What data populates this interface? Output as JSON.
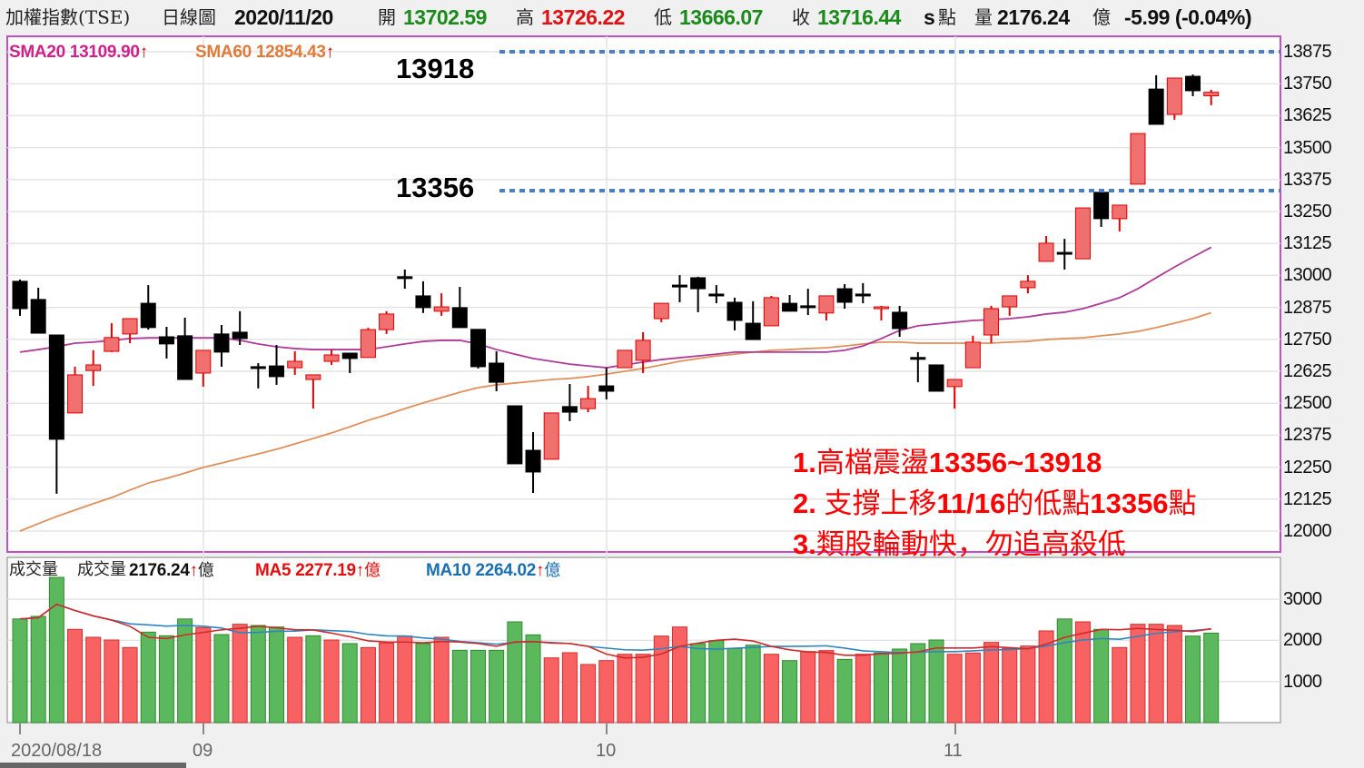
{
  "header": {
    "index_name": "加權指數(TSE)",
    "chart_type": "日線圖",
    "date": "2020/11/20",
    "open_label": "開",
    "open": "13702.59",
    "high_label": "高",
    "high": "13726.22",
    "low_label": "低",
    "low": "13666.07",
    "close_label": "收",
    "close": "13716.44",
    "s_mark": "s",
    "unit_points": "點",
    "volume_label": "量",
    "volume": "2176.24",
    "volume_unit": "億",
    "change": "-5.99 (-0.04%)"
  },
  "price_legend": {
    "sma20": "SMA20 13109.90",
    "sma60": "SMA60 12854.43",
    "arrow": "↑"
  },
  "volume_legend": {
    "title": "成交量",
    "label": "成交量",
    "value": "2176.24",
    "unit": "億",
    "ma5": "MA5 2277.19",
    "ma10": "MA10 2264.02",
    "arrow": "↑"
  },
  "levels": {
    "upper": "13918",
    "lower": "13356"
  },
  "notes": [
    {
      "num": "1.",
      "text": "高檔震盪",
      "tail": "13356~13918"
    },
    {
      "num": "2. ",
      "text": "支撐上移",
      "tail": "11/16",
      "text2": "的低點",
      "tail2": "13356",
      "text3": "點"
    },
    {
      "num": "3.",
      "text": "類股輪動快，勿追高殺低"
    }
  ],
  "x_labels": [
    "2020/08/18",
    "09",
    "10",
    "11"
  ],
  "colors": {
    "up_candle": "#f07070",
    "up_border": "#e00000",
    "down_candle": "#000000",
    "sma20": "#b03a98",
    "sma60": "#e0905a",
    "vol_up": "#f86262",
    "vol_down": "#5cb85c",
    "vol_ma5": "#d02a2a",
    "vol_ma10": "#2f85c0",
    "level_line": "#4a7fc1",
    "price_frame": "#c050c8"
  },
  "chart_data": {
    "type": "candlestick",
    "price_ylim": [
      12000,
      13875
    ],
    "price_ticks": [
      13875,
      13750,
      13625,
      13500,
      13375,
      13250,
      13125,
      13000,
      12875,
      12750,
      12625,
      12500,
      12375,
      12250,
      12125,
      12000
    ],
    "volume_ticks": [
      3000,
      2000,
      1000
    ],
    "grid": true,
    "ohlc": [
      [
        12977,
        12984,
        12842,
        12870
      ],
      [
        12906,
        12952,
        12774,
        12774
      ],
      [
        12767,
        12767,
        12146,
        12359
      ],
      [
        12462,
        12643,
        12462,
        12611
      ],
      [
        12628,
        12707,
        12568,
        12650
      ],
      [
        12703,
        12813,
        12700,
        12757
      ],
      [
        12771,
        12831,
        12735,
        12831
      ],
      [
        12891,
        12962,
        12788,
        12796
      ],
      [
        12760,
        12799,
        12675,
        12732
      ],
      [
        12764,
        12835,
        12593,
        12593
      ],
      [
        12618,
        12707,
        12565,
        12707
      ],
      [
        12771,
        12806,
        12643,
        12700
      ],
      [
        12778,
        12860,
        12728,
        12753
      ],
      [
        12643,
        12657,
        12558,
        12636
      ],
      [
        12646,
        12728,
        12572,
        12604
      ],
      [
        12639,
        12703,
        12611,
        12664
      ],
      [
        12593,
        12611,
        12479,
        12611
      ],
      [
        12664,
        12710,
        12650,
        12689
      ],
      [
        12696,
        12696,
        12618,
        12675
      ],
      [
        12679,
        12795,
        12679,
        12788
      ],
      [
        12788,
        12860,
        12771,
        12849
      ],
      [
        12995,
        13023,
        12948,
        12988
      ],
      [
        12920,
        12977,
        12853,
        12874
      ],
      [
        12860,
        12930,
        12842,
        12877
      ],
      [
        12874,
        12955,
        12796,
        12796
      ],
      [
        12789,
        12789,
        12636,
        12643
      ],
      [
        12657,
        12703,
        12547,
        12582
      ],
      [
        12490,
        12490,
        12263,
        12263
      ],
      [
        12316,
        12387,
        12149,
        12231
      ],
      [
        12281,
        12462,
        12281,
        12462
      ],
      [
        12487,
        12575,
        12430,
        12465
      ],
      [
        12479,
        12568,
        12465,
        12518
      ],
      [
        12568,
        12639,
        12515,
        12547
      ],
      [
        12639,
        12707,
        12639,
        12707
      ],
      [
        12668,
        12778,
        12618,
        12746
      ],
      [
        12831,
        12891,
        12817,
        12891
      ],
      [
        12962,
        13001,
        12895,
        12958
      ],
      [
        12991,
        12995,
        12856,
        12948
      ],
      [
        12927,
        12962,
        12891,
        12923
      ],
      [
        12895,
        12913,
        12785,
        12824
      ],
      [
        12813,
        12899,
        12749,
        12749
      ],
      [
        12803,
        12920,
        12803,
        12913
      ],
      [
        12891,
        12923,
        12860,
        12860
      ],
      [
        12881,
        12948,
        12845,
        12877
      ],
      [
        12853,
        12920,
        12824,
        12920
      ],
      [
        12948,
        12966,
        12870,
        12895
      ],
      [
        12927,
        12970,
        12891,
        12920
      ],
      [
        12870,
        12881,
        12824,
        12877
      ],
      [
        12856,
        12881,
        12760,
        12792
      ],
      [
        12679,
        12700,
        12582,
        12672
      ],
      [
        12650,
        12650,
        12547,
        12547
      ],
      [
        12565,
        12593,
        12479,
        12593
      ],
      [
        12639,
        12764,
        12639,
        12739
      ],
      [
        12767,
        12881,
        12735,
        12870
      ],
      [
        12877,
        12920,
        12842,
        12920
      ],
      [
        12952,
        13001,
        12930,
        12977
      ],
      [
        13055,
        13154,
        13055,
        13126
      ],
      [
        13090,
        13143,
        13023,
        13086
      ],
      [
        13065,
        13264,
        13065,
        13264
      ],
      [
        13325,
        13325,
        13190,
        13222
      ],
      [
        13222,
        13275,
        13172,
        13275
      ],
      [
        13357,
        13555,
        13357,
        13555
      ],
      [
        13729,
        13783,
        13591,
        13591
      ],
      [
        13630,
        13772,
        13609,
        13772
      ],
      [
        13779,
        13786,
        13701,
        13722.43
      ],
      [
        13702.59,
        13726.22,
        13666.07,
        13716.44
      ]
    ],
    "sma20": [
      12700,
      12710,
      12721,
      12735,
      12739,
      12746,
      12753,
      12756,
      12756,
      12756,
      12756,
      12756,
      12746,
      12732,
      12721,
      12714,
      12710,
      12710,
      12710,
      12710,
      12721,
      12732,
      12742,
      12746,
      12746,
      12732,
      12710,
      12692,
      12675,
      12664,
      12653,
      12646,
      12639,
      12650,
      12661,
      12671,
      12678,
      12685,
      12692,
      12700,
      12700,
      12700,
      12700,
      12700,
      12700,
      12707,
      12724,
      12753,
      12785,
      12803,
      12810,
      12817,
      12824,
      12827,
      12831,
      12838,
      12849,
      12856,
      12870,
      12891,
      12913,
      12948,
      12991,
      13033,
      13072,
      13110
    ],
    "sma60": [
      12000,
      12029,
      12057,
      12082,
      12107,
      12131,
      12160,
      12188,
      12206,
      12227,
      12249,
      12266,
      12284,
      12302,
      12320,
      12341,
      12362,
      12384,
      12408,
      12433,
      12455,
      12479,
      12501,
      12522,
      12543,
      12561,
      12572,
      12579,
      12586,
      12593,
      12597,
      12604,
      12614,
      12625,
      12636,
      12650,
      12664,
      12675,
      12685,
      12692,
      12700,
      12707,
      12710,
      12714,
      12717,
      12724,
      12732,
      12739,
      12739,
      12735,
      12735,
      12735,
      12735,
      12735,
      12739,
      12742,
      12749,
      12753,
      12756,
      12764,
      12771,
      12781,
      12796,
      12813,
      12831,
      12854
    ],
    "volume": [
      2520,
      2583,
      3532,
      2267,
      2075,
      2009,
      1825,
      2200,
      2112,
      2520,
      2311,
      2141,
      2391,
      2362,
      2325,
      2075,
      2112,
      2009,
      1921,
      1825,
      1936,
      2104,
      1921,
      2075,
      1759,
      1759,
      1759,
      2450,
      2134,
      1574,
      1700,
      1413,
      1508,
      1662,
      1662,
      2104,
      2325,
      1921,
      1994,
      1803,
      1884,
      1662,
      1508,
      1729,
      1751,
      1538,
      1662,
      1693,
      1788,
      1921,
      2009,
      1662,
      1693,
      1950,
      1803,
      1862,
      2230,
      2520,
      2450,
      2267,
      1825,
      2391,
      2391,
      2362,
      2104,
      2176.24
    ],
    "volume_up": [
      0,
      0,
      0,
      1,
      1,
      1,
      1,
      0,
      0,
      0,
      1,
      0,
      1,
      0,
      0,
      1,
      0,
      1,
      0,
      1,
      1,
      1,
      0,
      1,
      0,
      0,
      0,
      0,
      0,
      1,
      1,
      1,
      1,
      1,
      1,
      1,
      1,
      0,
      0,
      0,
      0,
      1,
      0,
      1,
      1,
      0,
      1,
      0,
      0,
      0,
      0,
      1,
      1,
      1,
      1,
      1,
      1,
      0,
      1,
      0,
      1,
      1,
      1,
      1,
      0,
      0
    ],
    "support_levels": [
      13918,
      13356
    ]
  }
}
